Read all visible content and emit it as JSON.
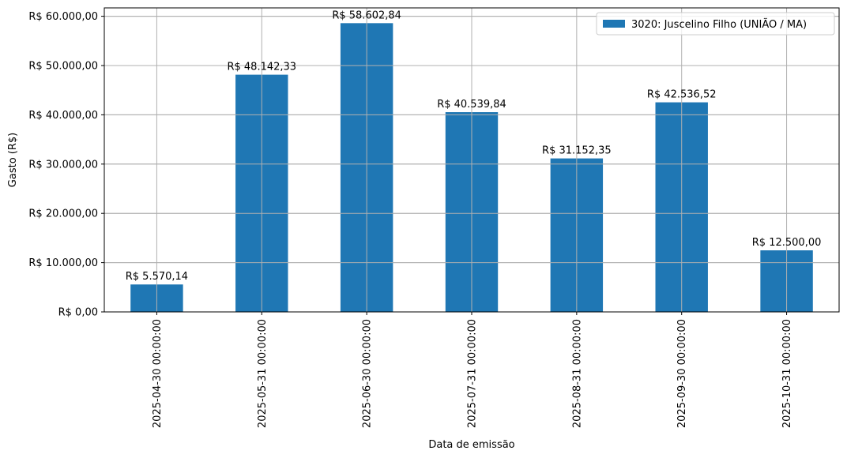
{
  "chart_data": {
    "type": "bar",
    "categories": [
      "2025-04-30 00:00:00",
      "2025-05-31 00:00:00",
      "2025-06-30 00:00:00",
      "2025-07-31 00:00:00",
      "2025-08-31 00:00:00",
      "2025-09-30 00:00:00",
      "2025-10-31 00:00:00"
    ],
    "series": [
      {
        "name": "3020: Juscelino Filho (UNIÃO / MA)",
        "values": [
          5570.14,
          48142.33,
          58602.84,
          40539.84,
          31152.35,
          42536.52,
          12500.0
        ],
        "labels": [
          "R$ 5.570,14",
          "R$ 48.142,33",
          "R$ 58.602,84",
          "R$ 40.539,84",
          "R$ 31.152,35",
          "R$ 42.536,52",
          "R$ 12.500,00"
        ],
        "color": "#1f77b4"
      }
    ],
    "xlabel": "Data de emissão",
    "ylabel": "Gasto (R$)",
    "ylim": [
      0,
      61700
    ],
    "yticks": [
      0,
      10000,
      20000,
      30000,
      40000,
      50000,
      60000
    ],
    "ytick_labels": [
      "R$ 0,00",
      "R$ 10.000,00",
      "R$ 20.000,00",
      "R$ 30.000,00",
      "R$ 40.000,00",
      "R$ 50.000,00",
      "R$ 60.000,00"
    ],
    "grid": true,
    "legend_position": "top-right",
    "grid_color": "#b0b0b0"
  }
}
